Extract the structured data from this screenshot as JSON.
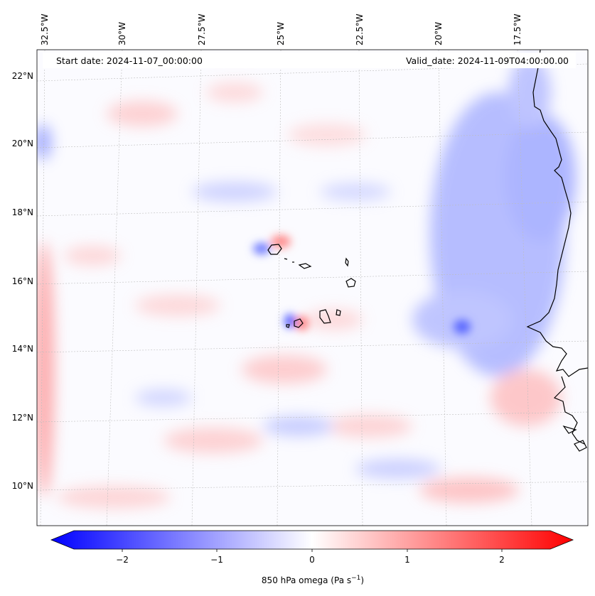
{
  "annotations": {
    "start": "Start date: 2024-11-07_00:00:00",
    "valid": "Valid_date: 2024-11-09T04:00:00.00"
  },
  "map": {
    "lon_ticks": [
      "32.5°W",
      "30°W",
      "27.5°W",
      "25°W",
      "22.5°W",
      "20°W",
      "17.5°W"
    ],
    "lat_ticks": [
      "22°N",
      "20°N",
      "18°N",
      "16°N",
      "14°N",
      "12°N",
      "10°N"
    ],
    "gridlines": true,
    "colormap": "bwr",
    "colors": {
      "neg": "#0000ff",
      "zero": "#ffffff",
      "pos": "#ff0000",
      "coast": "#000000"
    }
  },
  "colorbar": {
    "label": "850 hPa omega (Pa s",
    "label_sup": "−1",
    "label_end": ")",
    "ticks": [
      "−2",
      "−1",
      "0",
      "1",
      "2"
    ],
    "range": [
      -2.75,
      2.75
    ],
    "extend": "both"
  }
}
